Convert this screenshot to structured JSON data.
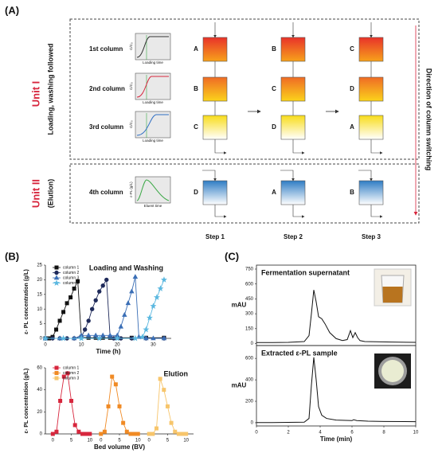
{
  "panel_labels": [
    "(A)",
    "(B)",
    "(C)"
  ],
  "diagram": {
    "units": [
      {
        "name": "Unit I",
        "subtitle": "Loading,  washing followed"
      },
      {
        "name": "Unit II",
        "subtitle": "(Elution)"
      }
    ],
    "direction_label": "Direction of column switching",
    "rows": [
      {
        "label": "1st column",
        "plot": {
          "ylabel": "C/C₀",
          "xlabel": "Loading time"
        }
      },
      {
        "label": "2nd column",
        "plot": {
          "ylabel": "C/C₀",
          "xlabel": "Loading time"
        }
      },
      {
        "label": "3rd column",
        "plot": {
          "ylabel": "C/C₀",
          "xlabel": "Loading time"
        }
      },
      {
        "label": "4th column",
        "plot": {
          "ylabel": "ε-PL (g/L)",
          "xlabel": "Eluent time"
        }
      }
    ],
    "steps": [
      {
        "label": "Step 1",
        "columns": [
          "A",
          "B",
          "C",
          "D"
        ]
      },
      {
        "label": "Step 2",
        "columns": [
          "B",
          "C",
          "D",
          "A"
        ]
      },
      {
        "label": "Step 3",
        "columns": [
          "C",
          "D",
          "A",
          "B"
        ]
      }
    ]
  },
  "chart_data": [
    {
      "type": "line",
      "title": "Loading and Washing",
      "xlabel": "Time (h)",
      "ylabel": "ε- PL concentration (g/L)",
      "xlim": [
        0,
        35
      ],
      "xticks": [
        0,
        10,
        20,
        30
      ],
      "ylim": [
        0,
        25
      ],
      "yticks": [
        0,
        5,
        10,
        15,
        20,
        25
      ],
      "series": [
        {
          "name": "column 1",
          "color": "#111111",
          "marker": "square",
          "x": [
            0,
            1,
            2,
            3,
            4,
            5,
            6,
            7,
            8,
            9,
            10,
            12,
            14,
            16,
            18,
            20,
            24,
            28,
            33
          ],
          "values": [
            0,
            0,
            0.5,
            3,
            6,
            9,
            12,
            14,
            17,
            19.5,
            0.5,
            0.2,
            0.2,
            0.2,
            0.2,
            0.2,
            0.2,
            0.2,
            0.2
          ]
        },
        {
          "name": "column 2",
          "color": "#1f2a5a",
          "marker": "circle",
          "x": [
            0,
            2,
            4,
            6,
            8,
            10,
            11,
            12,
            13,
            14,
            15,
            16,
            17,
            18,
            19,
            21,
            24,
            28,
            33
          ],
          "values": [
            0,
            0,
            0,
            0,
            0,
            0.5,
            3,
            6,
            10,
            13,
            16,
            18,
            20,
            0.5,
            0,
            0,
            0,
            0,
            0
          ]
        },
        {
          "name": "column 3",
          "color": "#3b6fb6",
          "marker": "triangle",
          "x": [
            0,
            4,
            8,
            10,
            12,
            14,
            16,
            18,
            20,
            21,
            22,
            23,
            24,
            25,
            26,
            28,
            30,
            33
          ],
          "values": [
            0,
            0,
            0,
            1,
            1,
            1,
            1,
            1,
            1,
            4,
            8,
            12,
            16,
            21,
            0.5,
            0,
            0,
            0
          ]
        },
        {
          "name": "column 4",
          "color": "#5bb8e0",
          "marker": "star",
          "x": [
            0,
            5,
            10,
            15,
            20,
            25,
            27,
            28,
            29,
            30,
            31,
            32,
            33
          ],
          "values": [
            0,
            0,
            0,
            0,
            0,
            0,
            0.5,
            3,
            7,
            11,
            14,
            17,
            20
          ]
        }
      ]
    },
    {
      "type": "line",
      "title": "Elution",
      "xlabel": "Bed volume (BV)",
      "ylabel": "ε- PL concentration (g/L)",
      "xlim": [
        -2,
        38
      ],
      "xticks": [
        {
          "value": 0,
          "label": "0"
        },
        {
          "value": 5,
          "label": "5"
        },
        {
          "value": 10,
          "label": "10"
        },
        {
          "value": 13,
          "label": "0"
        },
        {
          "value": 18,
          "label": "5"
        },
        {
          "value": 23,
          "label": "10"
        },
        {
          "value": 26,
          "label": "0"
        },
        {
          "value": 31,
          "label": "5"
        },
        {
          "value": 36,
          "label": "10"
        }
      ],
      "ylim": [
        0,
        60
      ],
      "yticks": [
        0,
        20,
        40,
        60
      ],
      "series": [
        {
          "name": "column 1",
          "color": "#d7263d",
          "marker": "square",
          "x": [
            0,
            1,
            2,
            3,
            4,
            5,
            6,
            7,
            8,
            9,
            10
          ],
          "values": [
            0,
            2,
            30,
            52,
            55,
            30,
            8,
            2,
            0,
            0,
            0
          ]
        },
        {
          "name": "column 2",
          "color": "#f08a24",
          "marker": "square",
          "x": [
            13,
            14,
            15,
            16,
            17,
            18,
            19,
            20,
            21,
            22,
            23
          ],
          "values": [
            0,
            2,
            25,
            52,
            45,
            25,
            10,
            2,
            0,
            0,
            0
          ]
        },
        {
          "name": "column 3",
          "color": "#f7c56b",
          "marker": "square",
          "x": [
            26,
            27,
            28,
            29,
            30,
            31,
            32,
            33,
            34,
            35,
            36
          ],
          "values": [
            0,
            0,
            5,
            50,
            40,
            25,
            10,
            2,
            0,
            0,
            0
          ]
        }
      ]
    },
    {
      "type": "line",
      "title": "Fermentation supernatant",
      "ylabel": "mAU",
      "xlim": [
        0,
        10
      ],
      "ylim": [
        -20,
        790
      ],
      "yticks": [
        0,
        150,
        300,
        450,
        600,
        750
      ],
      "x": [
        0,
        1,
        2,
        3,
        3.3,
        3.45,
        3.6,
        3.75,
        3.9,
        4.1,
        4.3,
        4.6,
        5,
        5.4,
        5.7,
        5.9,
        6.05,
        6.2,
        6.35,
        6.5,
        6.8,
        7.5,
        8.5,
        10
      ],
      "series": [
        {
          "color": "#111111",
          "values": [
            10,
            10,
            12,
            20,
            80,
            300,
            540,
            420,
            270,
            250,
            200,
            110,
            50,
            30,
            40,
            130,
            60,
            110,
            60,
            30,
            20,
            18,
            15,
            12
          ]
        }
      ]
    },
    {
      "type": "line",
      "title": "Extracted ε-PL sample",
      "ylabel": "mAU",
      "xlabel": "Time (min)",
      "xlim": [
        0,
        10
      ],
      "xticks": [
        0,
        2,
        4,
        6,
        8,
        10
      ],
      "ylim": [
        -30,
        720
      ],
      "yticks": [
        0,
        200,
        400,
        600
      ],
      "x": [
        0,
        1,
        2,
        3,
        3.3,
        3.45,
        3.6,
        3.75,
        3.9,
        4.1,
        4.4,
        5,
        6,
        6.1,
        6.3,
        7,
        8,
        10
      ],
      "series": [
        {
          "color": "#111111",
          "values": [
            2,
            2,
            3,
            5,
            40,
            350,
            610,
            400,
            150,
            70,
            40,
            25,
            20,
            28,
            20,
            15,
            12,
            10
          ]
        }
      ]
    }
  ]
}
